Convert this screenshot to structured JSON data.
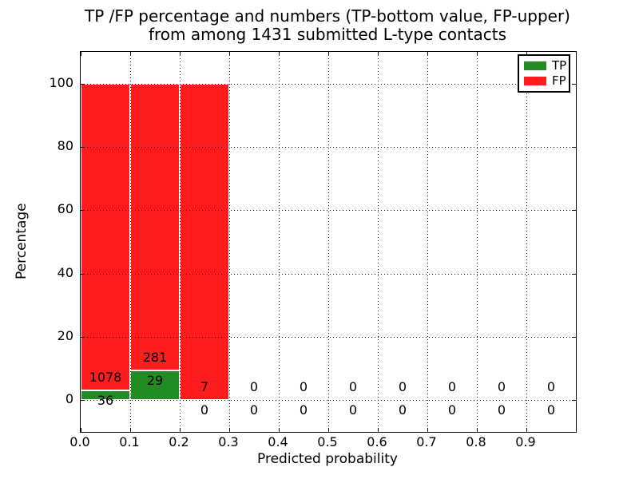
{
  "title": {
    "line1": "TP /FP percentage and numbers (TP-bottom value, FP-upper)",
    "line2": "from among 1431 submitted L-type contacts"
  },
  "chart_data": {
    "type": "bar",
    "stacked": true,
    "title": "TP /FP percentage and numbers (TP-bottom value, FP-upper)\nfrom among 1431 submitted L-type contacts",
    "xlabel": "Predicted probability",
    "ylabel": "Percentage",
    "total_submitted": 1431,
    "xlim": [
      0.0,
      1.0
    ],
    "ylim": [
      -10,
      110
    ],
    "x_tick_values": [
      0.0,
      0.1,
      0.2,
      0.3,
      0.4,
      0.5,
      0.6,
      0.7,
      0.8,
      0.9
    ],
    "x_tick_labels": [
      "0.0",
      "0.1",
      "0.2",
      "0.3",
      "0.4",
      "0.5",
      "0.6",
      "0.7",
      "0.8",
      "0.9"
    ],
    "y_tick_values": [
      0,
      20,
      40,
      60,
      80,
      100
    ],
    "y_tick_labels": [
      "0",
      "20",
      "40",
      "60",
      "80",
      "100"
    ],
    "grid": {
      "visible": true,
      "style": "dotted",
      "color": "#000000",
      "on_top_of_bars": true
    },
    "bin_width": 0.1,
    "bin_starts": [
      0.0,
      0.1,
      0.2,
      0.3,
      0.4,
      0.5,
      0.6,
      0.7,
      0.8,
      0.9
    ],
    "series": [
      {
        "name": "TP",
        "color": "#228b22",
        "counts": [
          36,
          29,
          0,
          0,
          0,
          0,
          0,
          0,
          0,
          0
        ],
        "pct": [
          3.23,
          9.35,
          0,
          0,
          0,
          0,
          0,
          0,
          0,
          0
        ]
      },
      {
        "name": "FP",
        "color": "#ff1c1c",
        "counts": [
          1078,
          281,
          7,
          0,
          0,
          0,
          0,
          0,
          0,
          0
        ],
        "pct": [
          96.77,
          90.65,
          100,
          0,
          0,
          0,
          0,
          0,
          0,
          0
        ]
      }
    ],
    "legend": {
      "position": "upper-right",
      "entries": [
        {
          "label": "TP",
          "color": "#228b22"
        },
        {
          "label": "FP",
          "color": "#ff1c1c"
        }
      ]
    },
    "annotation_note": "FP count shown above TP-percentage level, TP count shown below it, per bin"
  }
}
